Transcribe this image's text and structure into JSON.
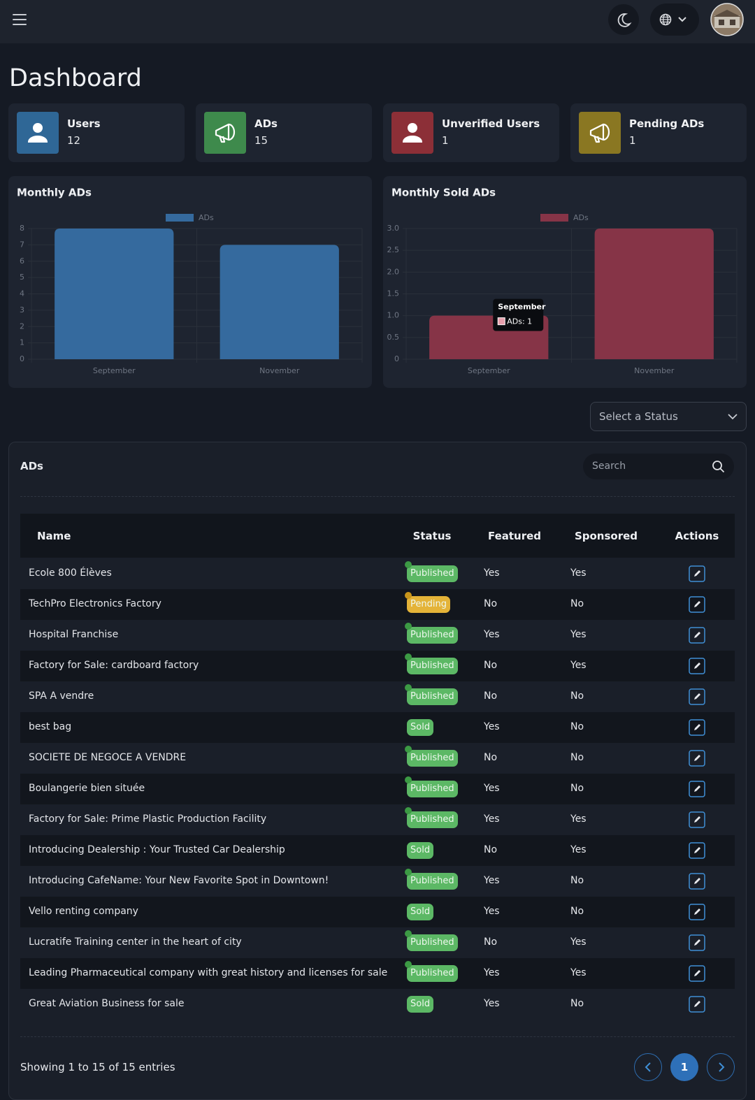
{
  "page": {
    "title": "Dashboard"
  },
  "stats": [
    {
      "label": "Users",
      "value": 12,
      "color": "#2f6796",
      "icon": "user"
    },
    {
      "label": "ADs",
      "value": 15,
      "color": "#3e8a4c",
      "icon": "megaphone"
    },
    {
      "label": "Unverified Users",
      "value": 1,
      "color": "#8c2f37",
      "icon": "user"
    },
    {
      "label": "Pending ADs",
      "value": 1,
      "color": "#8a7722",
      "icon": "megaphone"
    }
  ],
  "chart_data": [
    {
      "type": "bar",
      "title": "Monthly ADs",
      "categories": [
        "September",
        "November"
      ],
      "series": [
        {
          "name": "ADs",
          "color": "#356a9e",
          "values": [
            8,
            7
          ]
        }
      ],
      "ylim": [
        0,
        8
      ],
      "yticks": [
        0,
        1,
        2,
        3,
        4,
        5,
        6,
        7,
        8
      ],
      "grid": true
    },
    {
      "type": "bar",
      "title": "Monthly Sold ADs",
      "categories": [
        "September",
        "November"
      ],
      "series": [
        {
          "name": "ADs",
          "color": "#863447",
          "values": [
            1,
            3
          ]
        }
      ],
      "ylim": [
        0,
        3
      ],
      "yticks": [
        0,
        0.5,
        {
          "value": 1,
          "label": "1.0"
        },
        1.5,
        {
          "value": 2,
          "label": "2.0"
        },
        2.5,
        {
          "value": 3,
          "label": "3.0"
        }
      ],
      "grid": true,
      "tooltip": {
        "title": "September",
        "text": "ADs: 1",
        "color": "#e8a0ad"
      }
    }
  ],
  "filter": {
    "placeholder": "Select a Status"
  },
  "table": {
    "title": "ADs",
    "search_placeholder": "Search",
    "columns": [
      "Name",
      "Status",
      "Featured",
      "Sponsored",
      "Actions"
    ],
    "status_styles": {
      "Published": {
        "color": "#5cb865",
        "dot": "#3c9a44"
      },
      "Pending": {
        "color": "#e4b338",
        "dot": "#c8951b"
      },
      "Sold": {
        "color": "#5cb865"
      }
    },
    "rows": [
      [
        "Ecole 800 Élèves",
        "Published",
        "Yes",
        "Yes"
      ],
      [
        "TechPro Electronics Factory",
        "Pending",
        "No",
        "No"
      ],
      [
        "Hospital Franchise",
        "Published",
        "Yes",
        "Yes"
      ],
      [
        "Factory for Sale: cardboard factory",
        "Published",
        "No",
        "Yes"
      ],
      [
        "SPA A vendre",
        "Published",
        "No",
        "No"
      ],
      [
        "best bag",
        "Sold",
        "Yes",
        "No"
      ],
      [
        "SOCIETE DE NEGOCE A VENDRE",
        "Published",
        "No",
        "No"
      ],
      [
        "Boulangerie bien située",
        "Published",
        "Yes",
        "No"
      ],
      [
        "Factory for Sale: Prime Plastic Production Facility",
        "Published",
        "Yes",
        "Yes"
      ],
      [
        "Introducing Dealership : Your Trusted Car Dealership",
        "Sold",
        "No",
        "Yes"
      ],
      [
        "Introducing CafeName: Your New Favorite Spot in Downtown!",
        "Published",
        "Yes",
        "No"
      ],
      [
        "Vello renting company",
        "Sold",
        "Yes",
        "No"
      ],
      [
        "Lucratife Training center in the heart of city",
        "Published",
        "No",
        "Yes"
      ],
      [
        "Leading Pharmaceutical company with great history and licenses for sale",
        "Published",
        "Yes",
        "Yes"
      ],
      [
        "Great Aviation Business for sale",
        "Sold",
        "Yes",
        "No"
      ]
    ]
  },
  "footer": {
    "info": "Showing 1 to 15 of 15 entries",
    "pages": [
      1
    ]
  }
}
